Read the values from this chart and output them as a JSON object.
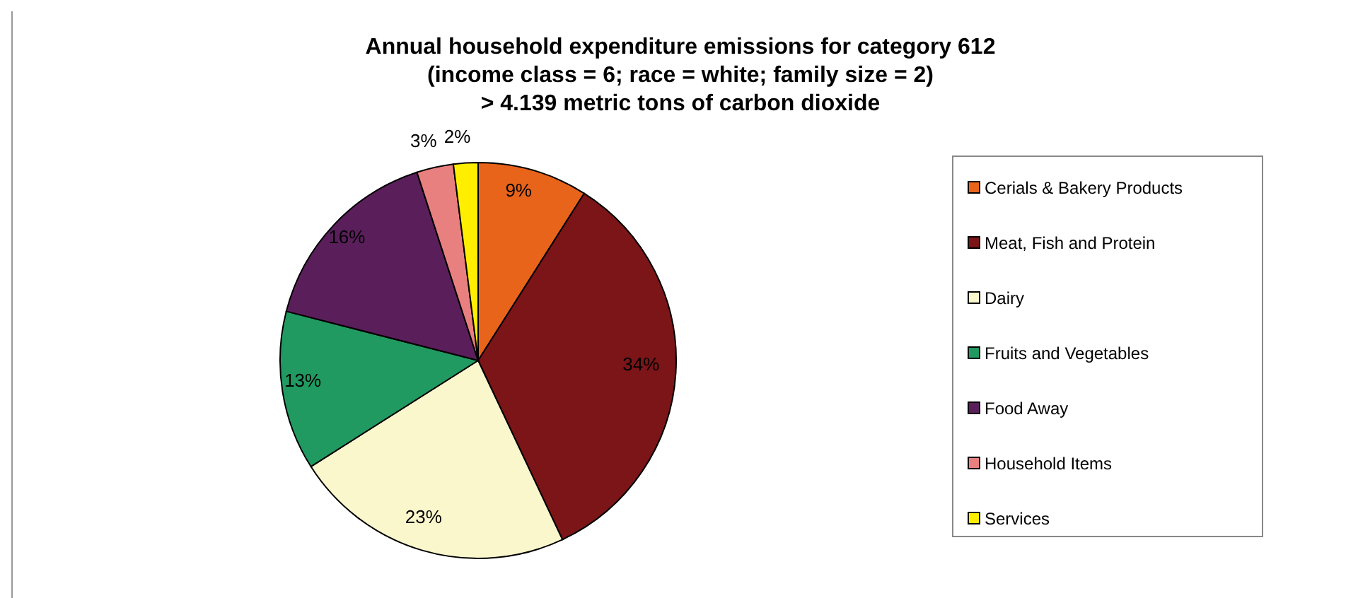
{
  "chart_data": {
    "type": "pie",
    "title": "Annual household expenditure emissions for category 612\n(income class = 6; race = white; family size = 2)\n> 4.139 metric tons of carbon dioxide",
    "categories": [
      "Cerials & Bakery Products",
      "Meat, Fish and Protein",
      "Dairy",
      "Fruits and Vegetables",
      "Food Away",
      "Household Items",
      "Services"
    ],
    "values": [
      9,
      34,
      23,
      13,
      16,
      3,
      2
    ],
    "colors": [
      "#e8641b",
      "#7b1518",
      "#fbf7cc",
      "#219a62",
      "#5a1f5a",
      "#e98080",
      "#ffee00"
    ],
    "value_labels": [
      "9%",
      "34%",
      "23%",
      "13%",
      "16%",
      "3%",
      "2%"
    ],
    "legend": "right"
  }
}
